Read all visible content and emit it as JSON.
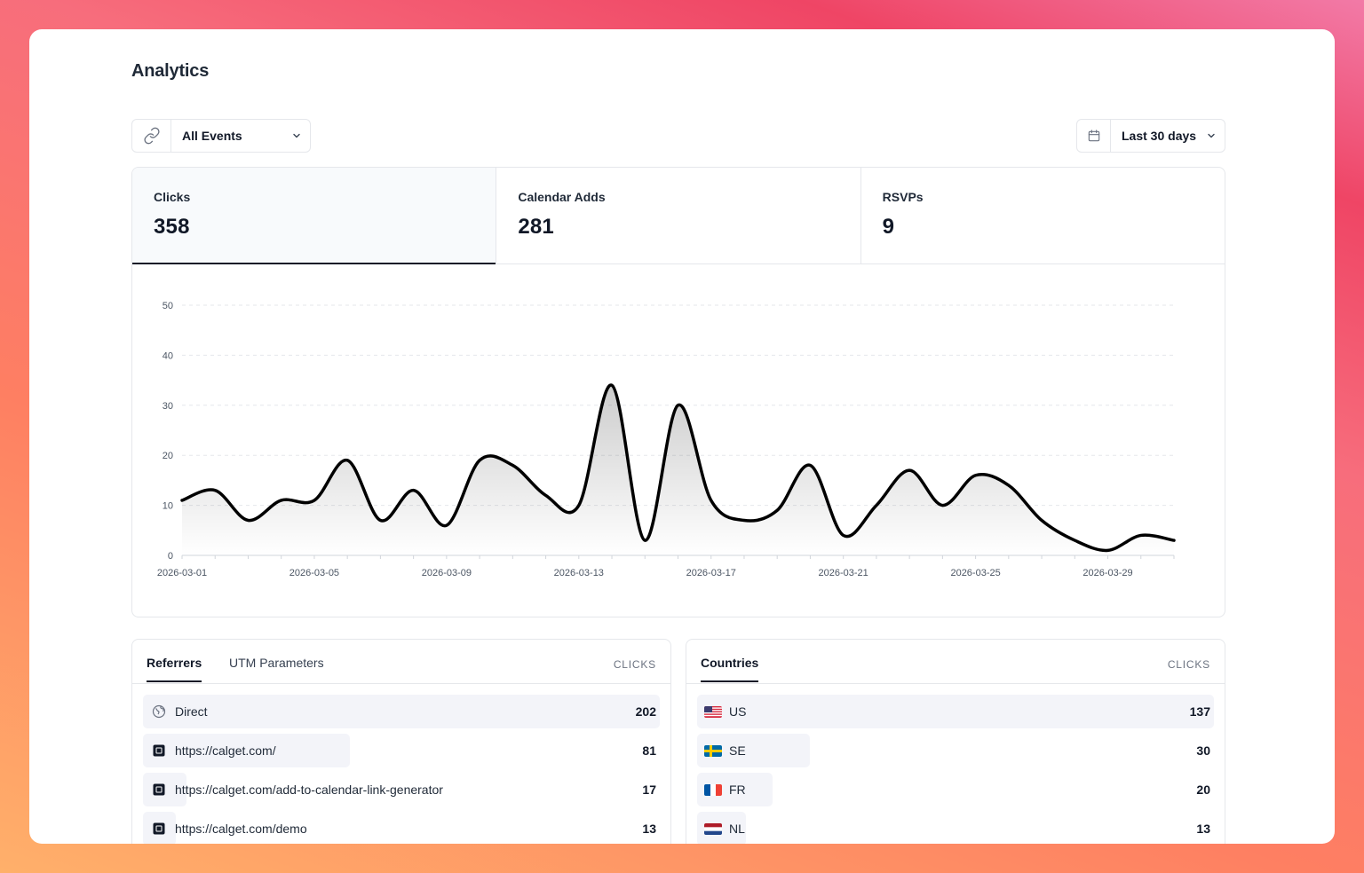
{
  "page": {
    "title": "Analytics"
  },
  "filters": {
    "event_select": {
      "value": "All Events",
      "icon": "link-icon"
    },
    "date_select": {
      "value": "Last 30 days",
      "icon": "calendar-icon"
    }
  },
  "stats": [
    {
      "label": "Clicks",
      "value": "358",
      "active": true
    },
    {
      "label": "Calendar Adds",
      "value": "281",
      "active": false
    },
    {
      "label": "RSVPs",
      "value": "9",
      "active": false
    }
  ],
  "chart_data": {
    "type": "area",
    "x": [
      "2026-03-01",
      "2026-03-02",
      "2026-03-03",
      "2026-03-04",
      "2026-03-05",
      "2026-03-06",
      "2026-03-07",
      "2026-03-08",
      "2026-03-09",
      "2026-03-10",
      "2026-03-11",
      "2026-03-12",
      "2026-03-13",
      "2026-03-14",
      "2026-03-15",
      "2026-03-16",
      "2026-03-17",
      "2026-03-18",
      "2026-03-19",
      "2026-03-20",
      "2026-03-21",
      "2026-03-22",
      "2026-03-23",
      "2026-03-24",
      "2026-03-25",
      "2026-03-26",
      "2026-03-27",
      "2026-03-28",
      "2026-03-29",
      "2026-03-30",
      "2026-03-31"
    ],
    "series": [
      {
        "values": [
          11,
          13,
          7,
          11,
          11,
          19,
          7,
          13,
          6,
          19,
          18,
          12,
          10,
          34,
          3,
          30,
          11,
          7,
          9,
          18,
          4,
          10,
          17,
          10,
          16,
          14,
          7,
          3,
          1,
          4,
          3
        ]
      }
    ],
    "xticks": [
      "2026-03-01",
      "2026-03-05",
      "2026-03-09",
      "2026-03-13",
      "2026-03-17",
      "2026-03-21",
      "2026-03-25",
      "2026-03-29"
    ],
    "yticks": [
      0,
      10,
      20,
      30,
      40,
      50
    ],
    "ylim": [
      0,
      50
    ],
    "grid": true,
    "line_color": "#000000"
  },
  "referrers": {
    "tabs": [
      "Referrers",
      "UTM Parameters"
    ],
    "column": "CLICKS",
    "rows": [
      {
        "label": "Direct",
        "value": "202",
        "count": 202,
        "icon": "globe-icon"
      },
      {
        "label": "https://calget.com/",
        "value": "81",
        "count": 81,
        "icon": "calget-favicon-icon"
      },
      {
        "label": "https://calget.com/add-to-calendar-link-generator",
        "value": "17",
        "count": 17,
        "icon": "calget-favicon-icon"
      },
      {
        "label": "https://calget.com/demo",
        "value": "13",
        "count": 13,
        "icon": "calget-favicon-icon"
      }
    ]
  },
  "countries": {
    "title": "Countries",
    "column": "CLICKS",
    "rows": [
      {
        "label": "US",
        "value": "137",
        "count": 137,
        "icon": "us-flag-icon"
      },
      {
        "label": "SE",
        "value": "30",
        "count": 30,
        "icon": "se-flag-icon"
      },
      {
        "label": "FR",
        "value": "20",
        "count": 20,
        "icon": "fr-flag-icon"
      },
      {
        "label": "NL",
        "value": "13",
        "count": 13,
        "icon": "nl-flag-icon"
      }
    ]
  }
}
